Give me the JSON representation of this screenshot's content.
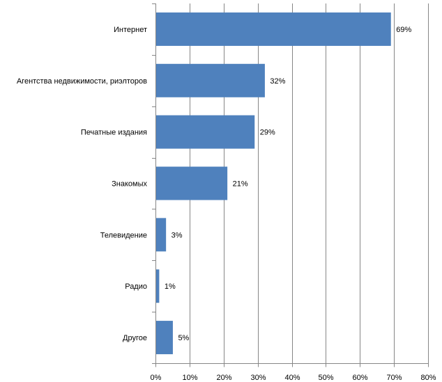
{
  "chart_data": {
    "type": "bar",
    "orientation": "horizontal",
    "categories": [
      "Интернет",
      "Агентства недвижимости, риэлторов",
      "Печатные издания",
      "Знакомых",
      "Телевидение",
      "Радио",
      "Другое"
    ],
    "values": [
      69,
      32,
      29,
      21,
      3,
      1,
      5
    ],
    "data_labels": [
      "69%",
      "32%",
      "29%",
      "21%",
      "3%",
      "1%",
      "5%"
    ],
    "xlim": [
      0,
      80
    ],
    "xticks": [
      0,
      10,
      20,
      30,
      40,
      50,
      60,
      70,
      80
    ],
    "xtick_labels": [
      "0%",
      "10%",
      "20%",
      "30%",
      "40%",
      "50%",
      "60%",
      "70%",
      "80%"
    ],
    "grid": "vertical",
    "bar_color": "#4f81bd",
    "title": "",
    "xlabel": "",
    "ylabel": ""
  }
}
